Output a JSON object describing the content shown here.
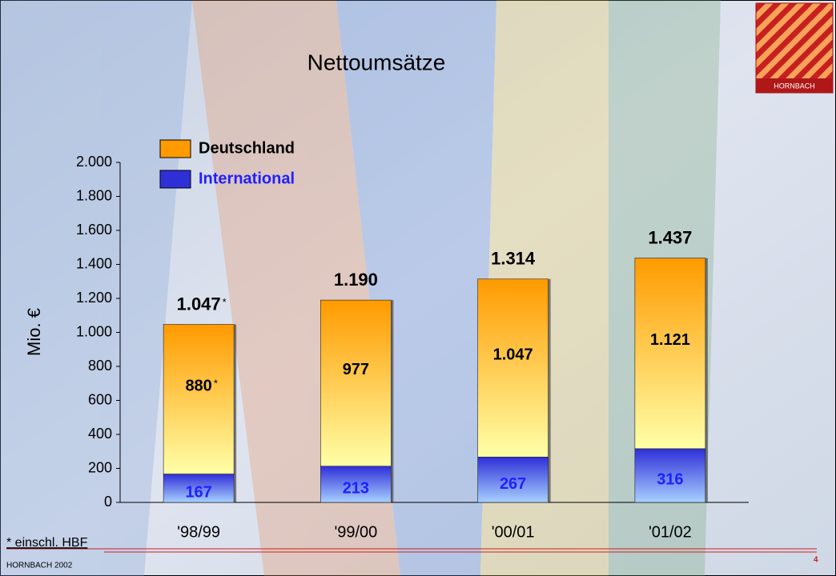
{
  "chart_data": {
    "type": "stacked-bar",
    "title": "Nettoumsätze",
    "ylabel": "Mio. €",
    "categories": [
      "'98/99",
      "'99/00",
      "'00/01",
      "'01/02"
    ],
    "series": [
      {
        "name": "International",
        "color": "#2f2fd8",
        "label_color": "#2020ff",
        "values": [
          167,
          213,
          267,
          316
        ]
      },
      {
        "name": "Deutschland",
        "color": "#ff9a00",
        "label_color": "#000000",
        "values": [
          880,
          977,
          1047,
          1121
        ],
        "value_labels": [
          "880",
          "977",
          "1.047",
          "1.121"
        ]
      }
    ],
    "totals": {
      "values": [
        1047,
        1190,
        1314,
        1437
      ],
      "value_labels": [
        "1.047",
        "1.190",
        "1.314",
        "1.437"
      ]
    },
    "ylim": [
      0,
      2000
    ],
    "yticks": [
      0,
      200,
      400,
      600,
      800,
      {
        "value": 1000,
        "label": "1.000"
      },
      {
        "value": 1200,
        "label": "1.200"
      },
      {
        "value": 1400,
        "label": "1.400"
      },
      {
        "value": 1600,
        "label": "1.600"
      },
      {
        "value": 1800,
        "label": "1.800"
      },
      {
        "value": 2000,
        "label": "2.000"
      }
    ],
    "footnote_marker": "*",
    "footnote": "* einschl. HBF"
  },
  "footer": {
    "company": "HORNBACH 2002",
    "page": "4"
  },
  "logo": {
    "text": "HORNBACH"
  }
}
